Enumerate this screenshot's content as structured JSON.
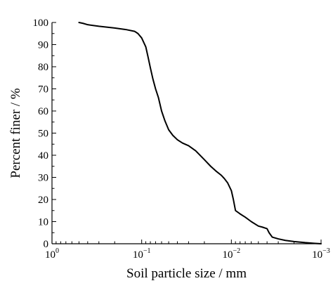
{
  "chart_data": {
    "type": "line",
    "title": "",
    "xlabel": "Soil particle size / mm",
    "ylabel": "Percent finer / %",
    "x_scale": "log",
    "x_reversed": true,
    "xlim": [
      1,
      0.001
    ],
    "ylim": [
      0,
      100
    ],
    "grid": false,
    "x_ticks": [
      {
        "value": 1,
        "base": "10",
        "exp": "0"
      },
      {
        "value": 0.1,
        "base": "10",
        "exp": "−1"
      },
      {
        "value": 0.01,
        "base": "10",
        "exp": "−2"
      },
      {
        "value": 0.001,
        "base": "10",
        "exp": "−3"
      }
    ],
    "y_ticks": [
      0,
      10,
      20,
      30,
      40,
      50,
      60,
      70,
      80,
      90,
      100
    ],
    "series": [
      {
        "x": [
          0.5,
          0.45,
          0.4,
          0.3,
          0.2,
          0.15,
          0.12,
          0.11,
          0.1,
          0.09,
          0.085,
          0.08,
          0.075,
          0.07,
          0.065,
          0.06,
          0.055,
          0.05,
          0.045,
          0.04,
          0.035,
          0.03,
          0.025,
          0.02,
          0.017,
          0.015,
          0.013,
          0.012,
          0.011,
          0.01,
          0.0095,
          0.009,
          0.008,
          0.007,
          0.006,
          0.005,
          0.0045,
          0.004,
          0.0038,
          0.0035,
          0.003,
          0.0025,
          0.002,
          0.0015,
          0.0012,
          0.001
        ],
        "y": [
          100,
          99.6,
          99,
          98.3,
          97.5,
          96.8,
          96,
          95,
          93,
          89,
          84.5,
          79.5,
          74.5,
          70,
          66,
          60,
          55.5,
          51.5,
          49,
          47,
          45.5,
          44.3,
          42,
          38,
          35,
          33,
          31,
          29.5,
          27.5,
          24,
          20,
          15,
          13.5,
          12,
          10,
          8,
          7.5,
          6.8,
          5,
          3,
          2.2,
          1.5,
          1,
          0.5,
          0.2,
          0
        ]
      }
    ]
  }
}
